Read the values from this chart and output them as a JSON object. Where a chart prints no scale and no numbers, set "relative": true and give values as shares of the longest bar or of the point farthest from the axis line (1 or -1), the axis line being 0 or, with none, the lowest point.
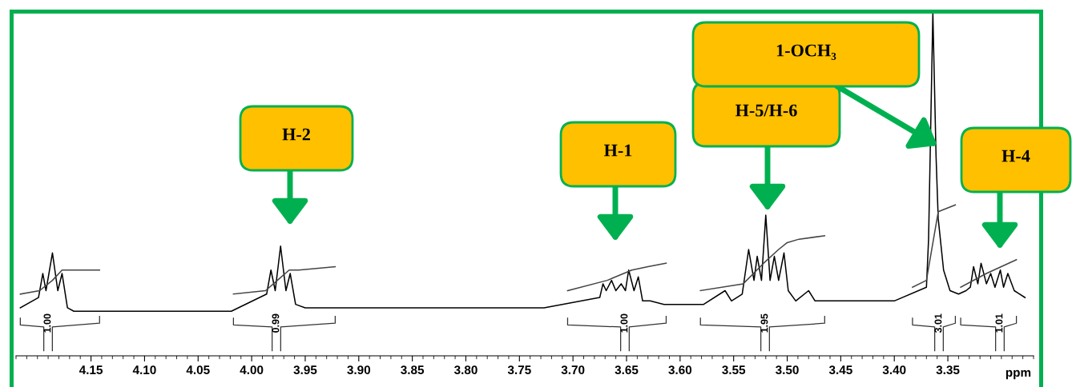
{
  "chart_data": {
    "type": "line",
    "relative": true,
    "xlabel": "ppm",
    "xlim": [
      4.22,
      3.27
    ],
    "xticks": [
      4.15,
      {
        "value": 4.1,
        "label": "4.10"
      },
      4.05,
      {
        "value": 4.0,
        "label": "4.00"
      },
      3.95,
      {
        "value": 3.9,
        "label": "3.90"
      },
      3.85,
      {
        "value": 3.8,
        "label": "3.80"
      },
      3.75,
      {
        "value": 3.7,
        "label": "3.70"
      },
      3.65,
      {
        "value": 3.6,
        "label": "3.60"
      },
      3.55,
      {
        "value": 3.5,
        "label": "3.50"
      },
      3.45,
      {
        "value": 3.4,
        "label": "3.40"
      },
      3.35
    ],
    "series": [
      {
        "color": "#000000",
        "x": [
          4.216,
          4.199,
          4.195,
          4.192,
          4.186,
          4.181,
          4.177,
          4.172,
          4.166,
          4.019,
          3.986,
          3.982,
          3.978,
          3.973,
          3.968,
          3.964,
          3.959,
          3.95,
          3.727,
          3.675,
          3.672,
          3.669,
          3.664,
          3.66,
          3.655,
          3.651,
          3.648,
          3.643,
          3.639,
          3.635,
          3.628,
          3.615,
          3.578,
          3.558,
          3.552,
          3.542,
          3.536,
          3.531,
          3.528,
          3.524,
          3.52,
          3.516,
          3.512,
          3.508,
          3.503,
          3.499,
          3.492,
          3.48,
          3.474,
          3.437,
          3.4,
          3.37,
          3.368,
          3.364,
          3.361,
          3.359,
          3.354,
          3.348,
          3.34,
          3.333,
          3.329,
          3.326,
          3.322,
          3.319,
          3.314,
          3.31,
          3.306,
          3.301,
          3.298,
          3.294,
          3.288,
          3.278
        ],
        "values": [
          0.14,
          0.17,
          0.24,
          0.19,
          0.3,
          0.19,
          0.24,
          0.14,
          0.13,
          0.13,
          0.18,
          0.25,
          0.19,
          0.32,
          0.19,
          0.24,
          0.15,
          0.14,
          0.14,
          0.17,
          0.21,
          0.19,
          0.22,
          0.19,
          0.21,
          0.19,
          0.25,
          0.19,
          0.23,
          0.16,
          0.16,
          0.15,
          0.15,
          0.19,
          0.16,
          0.18,
          0.31,
          0.22,
          0.29,
          0.22,
          0.41,
          0.22,
          0.29,
          0.22,
          0.3,
          0.19,
          0.16,
          0.19,
          0.16,
          0.16,
          0.16,
          0.2,
          0.34,
          1.0,
          0.58,
          0.4,
          0.25,
          0.19,
          0.18,
          0.19,
          0.2,
          0.26,
          0.21,
          0.27,
          0.21,
          0.24,
          0.2,
          0.25,
          0.2,
          0.24,
          0.19,
          0.17
        ]
      },
      {
        "color": "#444444",
        "x": [
          4.216,
          4.198,
          4.186,
          4.177,
          4.166,
          4.142
        ],
        "values": [
          0.18,
          0.19,
          0.22,
          0.25,
          0.25,
          0.25
        ]
      },
      {
        "color": "#444444",
        "x": [
          4.017,
          3.987,
          3.976,
          3.965,
          3.956,
          3.922
        ],
        "values": [
          0.18,
          0.19,
          0.22,
          0.25,
          0.25,
          0.26
        ]
      },
      {
        "color": "#444444",
        "x": [
          3.705,
          3.668,
          3.645,
          3.63,
          3.613
        ],
        "values": [
          0.19,
          0.22,
          0.25,
          0.26,
          0.27
        ]
      },
      {
        "color": "#444444",
        "x": [
          3.581,
          3.541,
          3.522,
          3.508,
          3.5,
          3.489,
          3.465
        ],
        "values": [
          0.19,
          0.21,
          0.27,
          0.31,
          0.33,
          0.34,
          0.35
        ]
      },
      {
        "color": "#444444",
        "x": [
          3.383,
          3.37,
          3.359,
          3.343
        ],
        "values": [
          0.2,
          0.22,
          0.42,
          0.44
        ]
      },
      {
        "color": "#444444",
        "x": [
          3.338,
          3.314,
          3.286
        ],
        "values": [
          0.2,
          0.24,
          0.28
        ]
      }
    ],
    "annotations": [
      "H-2",
      "H-1",
      "H-5/H-6",
      "1-OCH₃",
      "H-4",
      "1.00",
      "0.99",
      "1.00",
      "1.95",
      "3.01",
      "1.01"
    ]
  }
}
